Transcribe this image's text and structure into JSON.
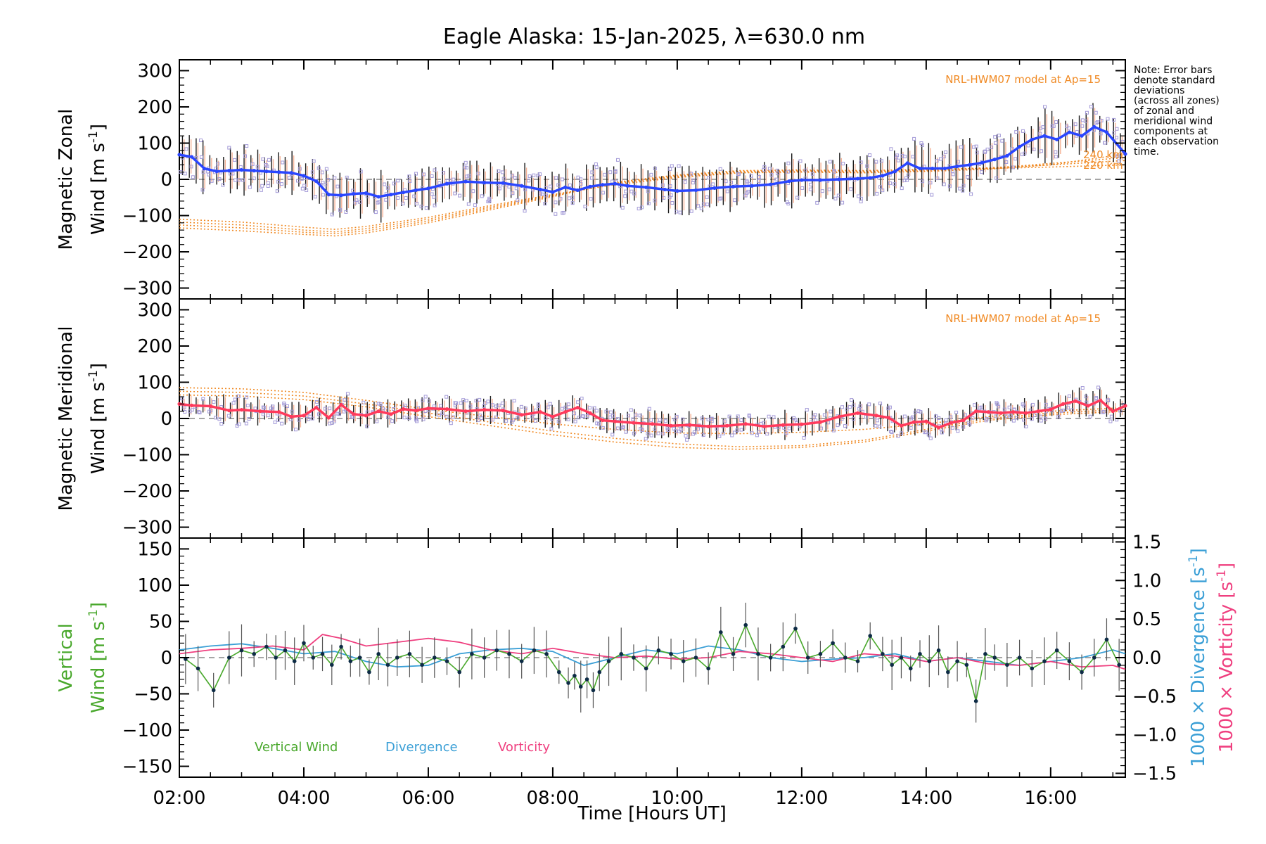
{
  "figure": {
    "title": "Eagle Alaska: 15-Jan-2025, λ=630.0 nm",
    "xlabel": "Time [Hours UT]",
    "note_lines": [
      "Note: Error bars",
      "denote standard",
      "deviations",
      "(across all zones)",
      "of zonal and",
      "meridional wind",
      "components at",
      "each observation",
      "time."
    ],
    "model_label": "NRL-HWM07 model at Ap=15",
    "model_altitudes": [
      "240 km",
      "220 km"
    ],
    "colors": {
      "zonal_line": "#2a46ff",
      "zonal_fit": "#3fa9f5",
      "meridional_line": "#ff3a5c",
      "model": "#f08a24",
      "samples": "#a49bd8",
      "errorbar": "#1a1a1a",
      "vertical": "#49a82c",
      "divergence": "#3a9fd6",
      "vorticity": "#ef3f7f"
    }
  },
  "chart_data": [
    {
      "type": "line",
      "panel": "zonal",
      "ylabel": "Magnetic Zonal",
      "ylabel2": "Wind [m s",
      "ylabel_sup": "-1",
      "ylabel_end": "]",
      "xlim": [
        2.0,
        17.2
      ],
      "ylim": [
        -330,
        330
      ],
      "xticks": [
        {
          "v": 2,
          "label": "02:00"
        },
        {
          "v": 4,
          "label": "04:00"
        },
        {
          "v": 6,
          "label": "06:00"
        },
        {
          "v": 8,
          "label": "08:00"
        },
        {
          "v": 10,
          "label": "10:00"
        },
        {
          "v": 12,
          "label": "12:00"
        },
        {
          "v": 14,
          "label": "14:00"
        },
        {
          "v": 16,
          "label": "16:00"
        }
      ],
      "yticks": [
        -300,
        -200,
        -100,
        0,
        100,
        200,
        300
      ],
      "series": {
        "name": "Zonal wind",
        "x": [
          2.0,
          2.2,
          2.4,
          2.6,
          2.8,
          3.0,
          3.2,
          3.4,
          3.6,
          3.8,
          4.0,
          4.2,
          4.4,
          4.6,
          4.8,
          5.0,
          5.2,
          5.4,
          5.6,
          5.8,
          6.0,
          6.3,
          6.6,
          6.9,
          7.2,
          7.5,
          7.8,
          8.0,
          8.2,
          8.4,
          8.6,
          8.8,
          9.0,
          9.2,
          9.5,
          9.8,
          10.0,
          10.3,
          10.6,
          10.9,
          11.2,
          11.5,
          11.8,
          12.0,
          12.3,
          12.6,
          12.9,
          13.1,
          13.3,
          13.5,
          13.7,
          13.9,
          14.1,
          14.3,
          14.5,
          14.7,
          14.9,
          15.1,
          15.3,
          15.5,
          15.7,
          15.9,
          16.1,
          16.3,
          16.5,
          16.7,
          16.9,
          17.2
        ],
        "y": [
          68,
          62,
          30,
          22,
          24,
          26,
          24,
          22,
          20,
          18,
          10,
          -5,
          -42,
          -44,
          -40,
          -38,
          -48,
          -42,
          -36,
          -30,
          -25,
          -12,
          -6,
          -9,
          -10,
          -18,
          -28,
          -35,
          -22,
          -30,
          -20,
          -15,
          -12,
          -18,
          -22,
          -28,
          -32,
          -30,
          -24,
          -20,
          -18,
          -14,
          -5,
          -2,
          -2,
          0,
          2,
          4,
          10,
          22,
          45,
          30,
          30,
          30,
          36,
          40,
          46,
          55,
          65,
          90,
          110,
          120,
          110,
          130,
          120,
          145,
          130,
          70
        ]
      },
      "errorbar_half_width": 55,
      "model_curves": [
        {
          "label": "",
          "x": [
            2.0,
            3.0,
            4.0,
            4.5,
            5.0,
            6.0,
            7.0,
            8.0,
            9.0,
            10.0,
            11.0,
            12.0,
            13.0,
            14.0,
            15.0,
            16.0,
            17.2
          ],
          "y": [
            -110,
            -118,
            -132,
            -138,
            -130,
            -105,
            -72,
            -42,
            -15,
            5,
            18,
            20,
            18,
            22,
            28,
            40,
            70
          ]
        },
        {
          "label": "",
          "x": [
            2.0,
            3.0,
            4.0,
            4.5,
            5.0,
            6.0,
            7.0,
            8.0,
            9.0,
            10.0,
            11.0,
            12.0,
            13.0,
            14.0,
            15.0,
            16.0,
            17.2
          ],
          "y": [
            -118,
            -126,
            -140,
            -145,
            -136,
            -110,
            -76,
            -44,
            -12,
            8,
            20,
            22,
            20,
            24,
            30,
            44,
            60
          ]
        },
        {
          "label": "240 km",
          "x": [
            2.0,
            3.0,
            4.0,
            4.5,
            5.0,
            6.0,
            7.0,
            8.0,
            9.0,
            10.0,
            11.0,
            12.0,
            13.0,
            14.0,
            15.0,
            16.0,
            17.2
          ],
          "y": [
            -126,
            -134,
            -146,
            -150,
            -142,
            -115,
            -80,
            -46,
            -10,
            10,
            22,
            24,
            22,
            26,
            32,
            40,
            52
          ]
        },
        {
          "label": "220 km",
          "x": [
            2.0,
            3.0,
            4.0,
            4.5,
            5.0,
            6.0,
            7.0,
            8.0,
            9.0,
            10.0,
            11.0,
            12.0,
            13.0,
            14.0,
            15.0,
            16.0,
            17.2
          ],
          "y": [
            -134,
            -142,
            -152,
            -156,
            -148,
            -120,
            -84,
            -48,
            -8,
            12,
            24,
            26,
            24,
            28,
            30,
            34,
            40
          ]
        }
      ]
    },
    {
      "type": "line",
      "panel": "meridional",
      "ylabel": "Magnetic Meridional",
      "ylabel2": "Wind [m s",
      "ylabel_sup": "-1",
      "ylabel_end": "]",
      "xlim": [
        2.0,
        17.2
      ],
      "ylim": [
        -330,
        330
      ],
      "yticks": [
        -300,
        -200,
        -100,
        0,
        100,
        200,
        300
      ],
      "series": {
        "name": "Meridional wind",
        "x": [
          2.0,
          2.2,
          2.5,
          2.8,
          3.0,
          3.3,
          3.6,
          3.8,
          4.0,
          4.2,
          4.4,
          4.6,
          4.8,
          5.0,
          5.2,
          5.4,
          5.6,
          5.8,
          6.0,
          6.3,
          6.6,
          6.9,
          7.2,
          7.5,
          7.8,
          8.0,
          8.2,
          8.4,
          8.6,
          8.8,
          9.0,
          9.3,
          9.6,
          9.9,
          10.2,
          10.5,
          10.8,
          11.1,
          11.4,
          11.7,
          12.0,
          12.3,
          12.6,
          12.9,
          13.2,
          13.4,
          13.6,
          13.8,
          14.0,
          14.2,
          14.4,
          14.6,
          14.8,
          15.0,
          15.2,
          15.4,
          15.6,
          15.8,
          16.0,
          16.2,
          16.4,
          16.6,
          16.8,
          17.0,
          17.2
        ],
        "y": [
          40,
          36,
          34,
          22,
          24,
          20,
          18,
          5,
          8,
          30,
          2,
          38,
          12,
          8,
          20,
          12,
          26,
          22,
          28,
          26,
          20,
          24,
          22,
          10,
          18,
          5,
          18,
          30,
          15,
          -5,
          -8,
          -12,
          -15,
          -20,
          -18,
          -22,
          -20,
          -15,
          -22,
          -18,
          -16,
          -10,
          5,
          15,
          8,
          2,
          -20,
          -10,
          -8,
          -25,
          -12,
          -5,
          20,
          18,
          15,
          18,
          15,
          20,
          25,
          40,
          48,
          35,
          50,
          20,
          35
        ]
      },
      "errorbar_half_width": 30,
      "model_curves": [
        {
          "label": "",
          "x": [
            2.0,
            3.0,
            4.0,
            5.0,
            6.0,
            7.0,
            8.0,
            9.0,
            10.0,
            11.0,
            12.0,
            13.0,
            14.0,
            15.0,
            16.0,
            17.2
          ],
          "y": [
            85,
            82,
            72,
            50,
            25,
            5,
            -15,
            -30,
            -40,
            -42,
            -38,
            -30,
            -15,
            5,
            20,
            30
          ]
        },
        {
          "label": "",
          "x": [
            2.0,
            3.0,
            4.0,
            5.0,
            6.0,
            7.0,
            8.0,
            9.0,
            10.0,
            11.0,
            12.0,
            13.0,
            14.0,
            15.0,
            16.0,
            17.2
          ],
          "y": [
            75,
            72,
            62,
            40,
            15,
            -10,
            -35,
            -55,
            -70,
            -78,
            -75,
            -60,
            -30,
            0,
            15,
            25
          ]
        },
        {
          "label": "",
          "x": [
            2.0,
            3.0,
            4.0,
            5.0,
            6.0,
            7.0,
            8.0,
            9.0,
            10.0,
            11.0,
            12.0,
            13.0,
            14.0,
            15.0,
            16.0,
            17.2
          ],
          "y": [
            65,
            62,
            52,
            32,
            5,
            -20,
            -45,
            -65,
            -80,
            -85,
            -80,
            -65,
            -35,
            -5,
            10,
            20
          ]
        }
      ]
    },
    {
      "type": "line",
      "panel": "vertical",
      "ylabel": "Vertical",
      "ylabel2": "Wind [m s",
      "ylabel_sup": "-1",
      "ylabel_end": "]",
      "y2label_a": "1000 × Divergence [s",
      "y2label_b": "1000 × Vorticity [s",
      "y2label_sup": "-1",
      "y2label_end": "]",
      "xlim": [
        2.0,
        17.2
      ],
      "ylim": [
        -165,
        165
      ],
      "y2lim": [
        -1.55,
        1.55
      ],
      "yticks": [
        -150,
        -100,
        -50,
        0,
        50,
        100,
        150
      ],
      "y2ticks": [
        {
          "v": -1.5,
          "label": "−1.5"
        },
        {
          "v": -1.0,
          "label": "−1.0"
        },
        {
          "v": -0.5,
          "label": "−0.5"
        },
        {
          "v": 0.0,
          "label": "0.0"
        },
        {
          "v": 0.5,
          "label": "0.5"
        },
        {
          "v": 1.0,
          "label": "1.0"
        },
        {
          "v": 1.5,
          "label": "1.5"
        }
      ],
      "legend": [
        "Vertical Wind",
        "Divergence",
        "Vorticity"
      ],
      "vertical": {
        "x": [
          2.1,
          2.3,
          2.55,
          2.8,
          3.0,
          3.2,
          3.4,
          3.55,
          3.7,
          3.85,
          4.0,
          4.15,
          4.3,
          4.45,
          4.6,
          4.75,
          4.9,
          5.05,
          5.2,
          5.35,
          5.5,
          5.7,
          5.9,
          6.1,
          6.3,
          6.5,
          6.7,
          6.9,
          7.1,
          7.3,
          7.5,
          7.7,
          7.9,
          8.1,
          8.25,
          8.35,
          8.45,
          8.55,
          8.65,
          8.75,
          8.9,
          9.1,
          9.3,
          9.5,
          9.7,
          9.9,
          10.1,
          10.3,
          10.5,
          10.7,
          10.9,
          11.1,
          11.3,
          11.5,
          11.7,
          11.9,
          12.1,
          12.3,
          12.5,
          12.7,
          12.9,
          13.1,
          13.3,
          13.45,
          13.6,
          13.75,
          13.9,
          14.05,
          14.2,
          14.35,
          14.5,
          14.65,
          14.8,
          14.95,
          15.1,
          15.3,
          15.5,
          15.7,
          15.9,
          16.1,
          16.3,
          16.5,
          16.7,
          16.9,
          17.1
        ],
        "y": [
          -2,
          -15,
          -45,
          0,
          10,
          5,
          15,
          0,
          10,
          -5,
          20,
          0,
          5,
          -10,
          15,
          -5,
          0,
          -20,
          5,
          -10,
          0,
          5,
          -10,
          0,
          -5,
          -20,
          5,
          0,
          10,
          5,
          -5,
          10,
          5,
          -20,
          -35,
          -25,
          -40,
          -30,
          -45,
          -20,
          -5,
          5,
          0,
          -15,
          10,
          5,
          -5,
          0,
          -15,
          35,
          5,
          45,
          5,
          0,
          15,
          40,
          0,
          5,
          20,
          0,
          -5,
          30,
          5,
          -10,
          0,
          -15,
          5,
          -5,
          10,
          -20,
          -5,
          -10,
          -60,
          5,
          0,
          -10,
          0,
          -15,
          -5,
          10,
          -5,
          -20,
          0,
          25,
          -10
        ]
      },
      "divergence": {
        "x": [
          2.0,
          2.5,
          3.0,
          3.5,
          4.0,
          4.5,
          5.0,
          5.5,
          6.0,
          6.5,
          7.0,
          7.5,
          8.0,
          8.5,
          9.0,
          9.5,
          10.0,
          10.5,
          11.0,
          11.5,
          12.0,
          12.5,
          13.0,
          13.5,
          14.0,
          14.5,
          15.0,
          15.5,
          16.0,
          16.5,
          17.0,
          17.2
        ],
        "y": [
          0.1,
          0.15,
          0.18,
          0.12,
          0.05,
          0.08,
          -0.05,
          -0.12,
          -0.1,
          0.05,
          0.1,
          0.12,
          0.08,
          -0.1,
          0.0,
          0.1,
          0.05,
          0.15,
          0.1,
          0.0,
          -0.05,
          -0.02,
          0.0,
          0.05,
          -0.05,
          0.0,
          -0.05,
          -0.1,
          -0.05,
          0.0,
          0.1,
          0.05
        ]
      },
      "vorticity": {
        "x": [
          2.0,
          2.5,
          3.0,
          3.5,
          4.0,
          4.3,
          4.6,
          5.0,
          5.5,
          6.0,
          6.5,
          7.0,
          7.5,
          8.0,
          8.5,
          9.0,
          9.5,
          10.0,
          10.5,
          11.0,
          11.5,
          12.0,
          12.5,
          13.0,
          13.5,
          14.0,
          14.5,
          15.0,
          15.5,
          16.0,
          16.5,
          17.0,
          17.2
        ],
        "y": [
          0.05,
          0.1,
          0.12,
          0.15,
          0.1,
          0.3,
          0.25,
          0.15,
          0.2,
          0.25,
          0.2,
          0.1,
          0.05,
          0.12,
          0.05,
          0.0,
          0.02,
          -0.02,
          0.0,
          0.08,
          0.05,
          0.0,
          -0.05,
          0.05,
          0.02,
          -0.05,
          0.0,
          -0.08,
          -0.1,
          -0.05,
          -0.12,
          -0.1,
          -0.15
        ]
      }
    }
  ]
}
